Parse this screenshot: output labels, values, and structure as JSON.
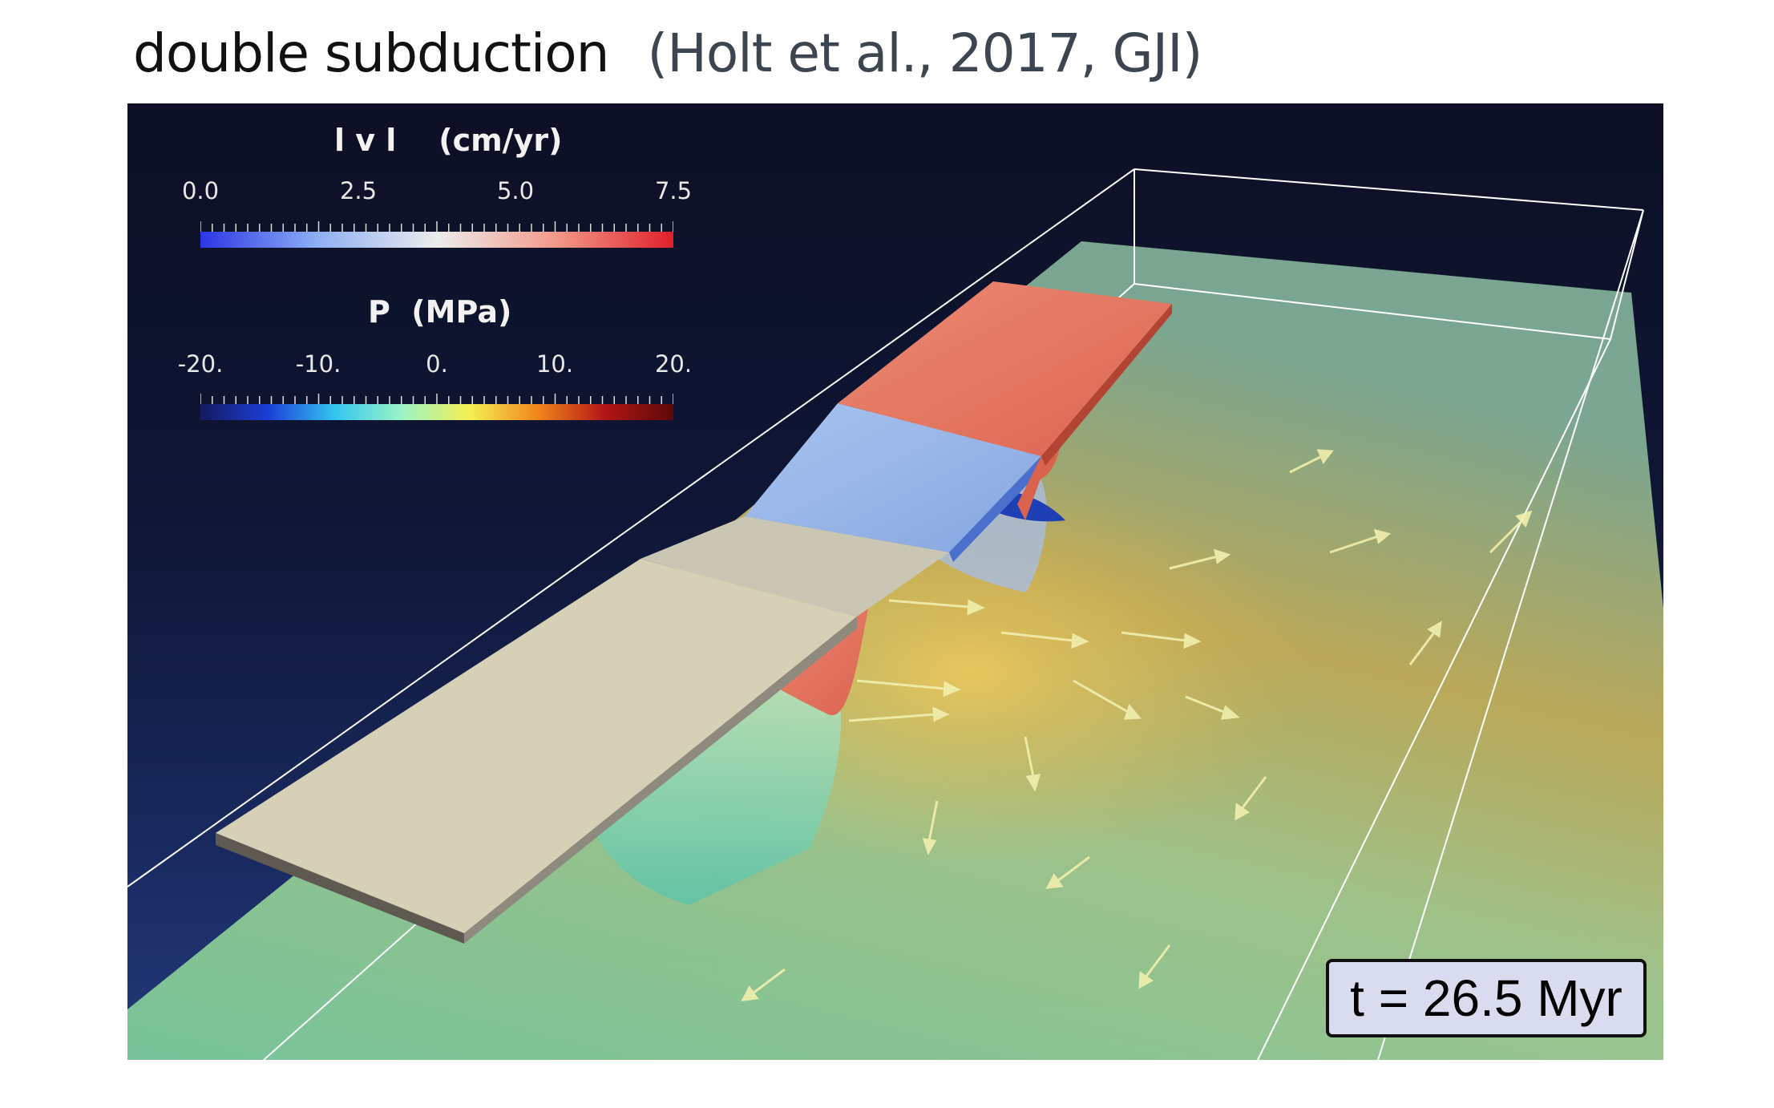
{
  "header": {
    "title": "double subduction",
    "citation": "(Holt et al., 2017, GJI)"
  },
  "legend": {
    "velocity": {
      "title": "l v l    (cm/yr)",
      "ticks": [
        "0.0",
        "2.5",
        "5.0",
        "7.5"
      ],
      "range": [
        0.0,
        7.5
      ],
      "colormap": [
        "#2a36e6",
        "#8fb0f4",
        "#ececec",
        "#f39a8a",
        "#e01f2a"
      ]
    },
    "pressure": {
      "title": "P  (MPa)",
      "ticks": [
        "-20.",
        "-10.",
        "0.",
        "10.",
        "20."
      ],
      "range": [
        -20,
        20
      ],
      "colormap": [
        "#141a60",
        "#1b3fd8",
        "#35c6f0",
        "#9ef5c4",
        "#f5ef52",
        "#f0851c",
        "#b31515",
        "#5c0808"
      ]
    }
  },
  "timestamp": "t = 26.5 Myr",
  "colors": {
    "background_top": "#0d1024",
    "background_bottom": "#233a78",
    "upper_plate": "#d8d2b8",
    "slab_blue": "#9cb8e6",
    "slab_red": "#e67560",
    "mantle_plane": "#8fd7a4",
    "arrows": "#f1efae",
    "box_outline": "#ffffff"
  }
}
